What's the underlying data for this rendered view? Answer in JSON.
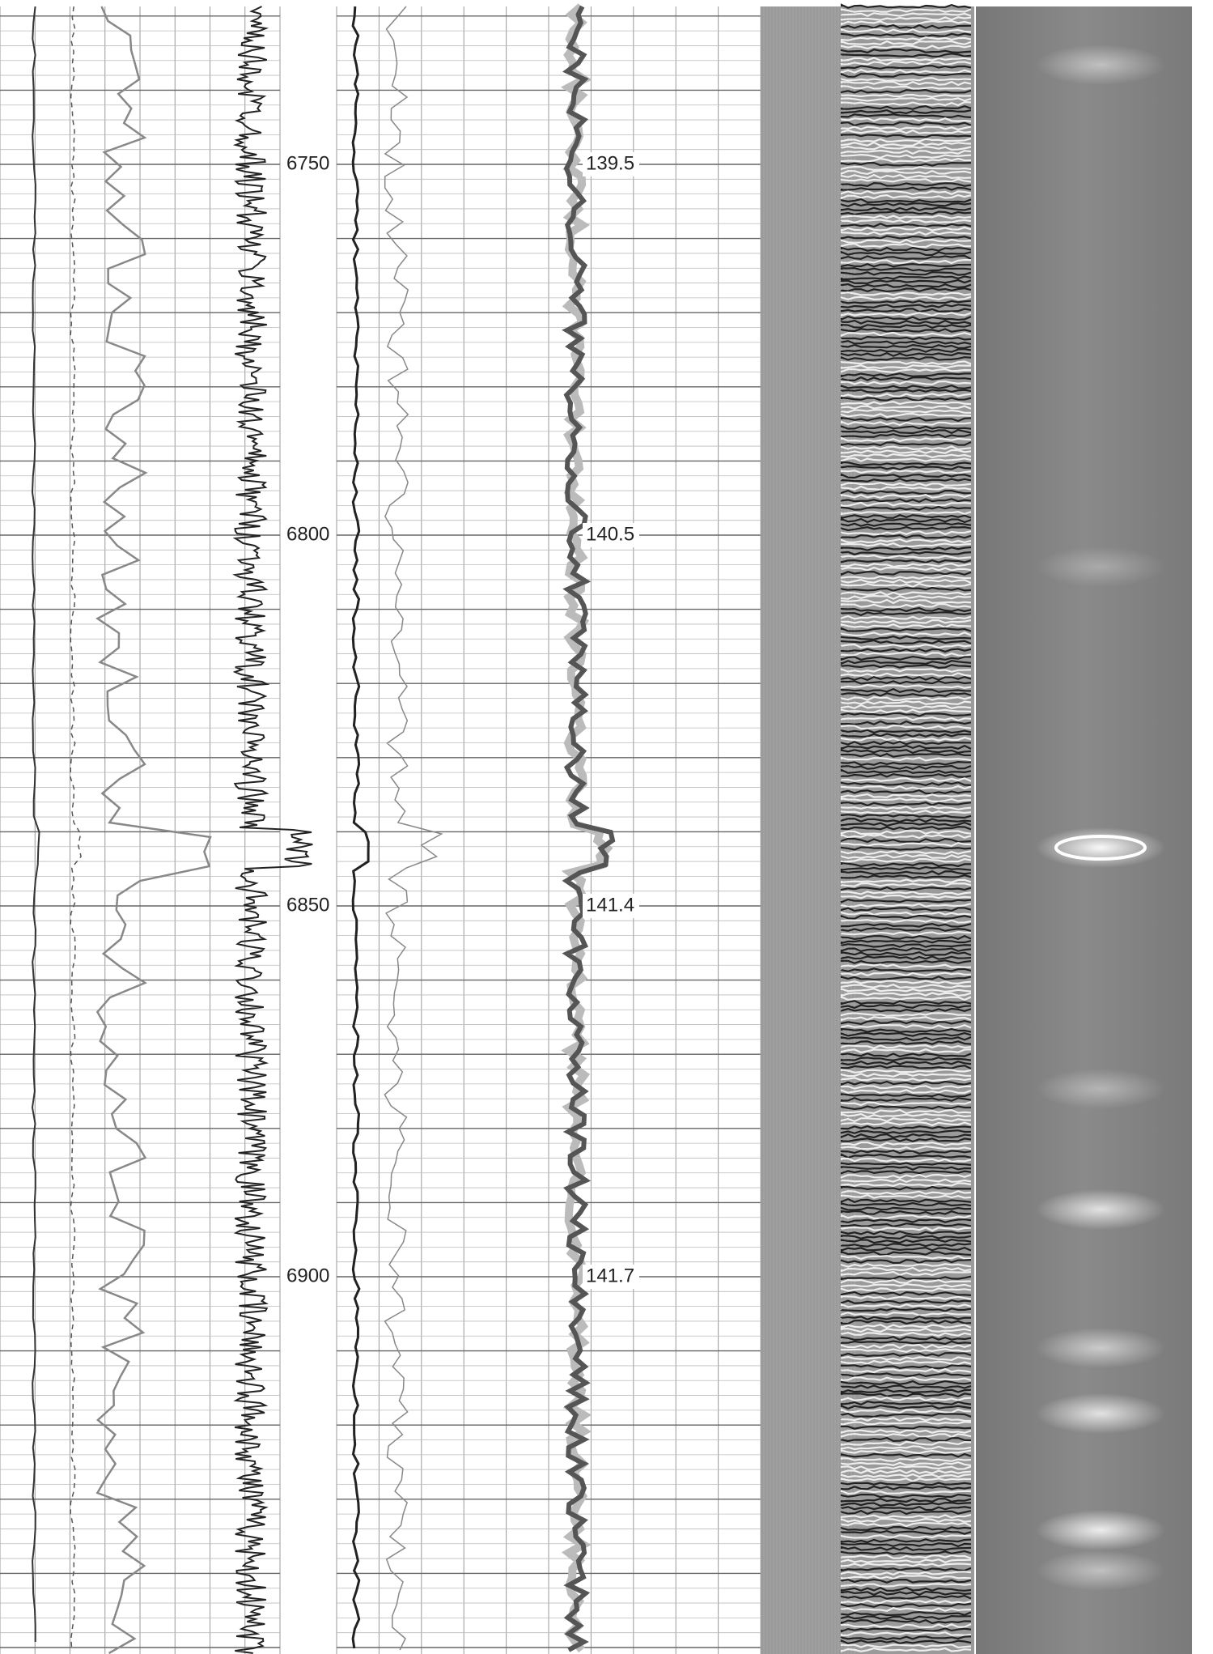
{
  "depth_labels": [
    "6750",
    "6800",
    "6850",
    "6900"
  ],
  "track_annotations": [
    "139.5",
    "140.5",
    "141.4",
    "141.7"
  ]
}
